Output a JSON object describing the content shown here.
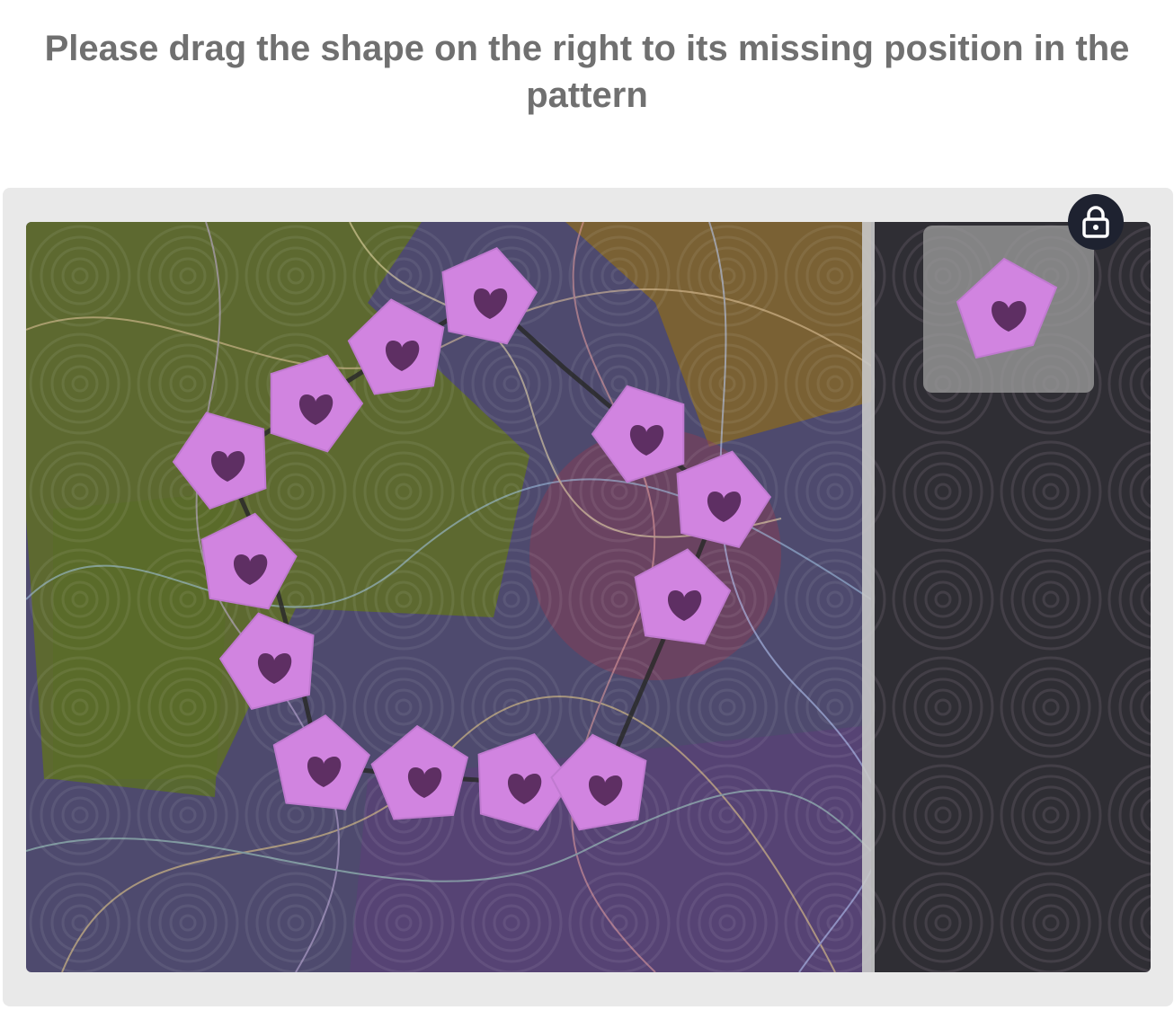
{
  "instruction": "Please drag the shape on the right to its missing position in the pattern",
  "colors": {
    "instruction_text": "#707070",
    "frame_bg": "#e9e9e9",
    "scene_bg": "#4e4a6e",
    "right_panel_bg": "#2f2e34",
    "divider": "#c8c8c8",
    "piece_fill": "#d184e0",
    "piece_heart": "#5e2f63",
    "tray_bg": "#969696",
    "lock_bg": "#1e2230",
    "lock_icon": "#ffffff"
  },
  "pattern_piece_count": 13,
  "draggable_piece": {
    "shape": "pentagon",
    "icon": "heart-icon"
  },
  "lock_icon": "lock-icon"
}
